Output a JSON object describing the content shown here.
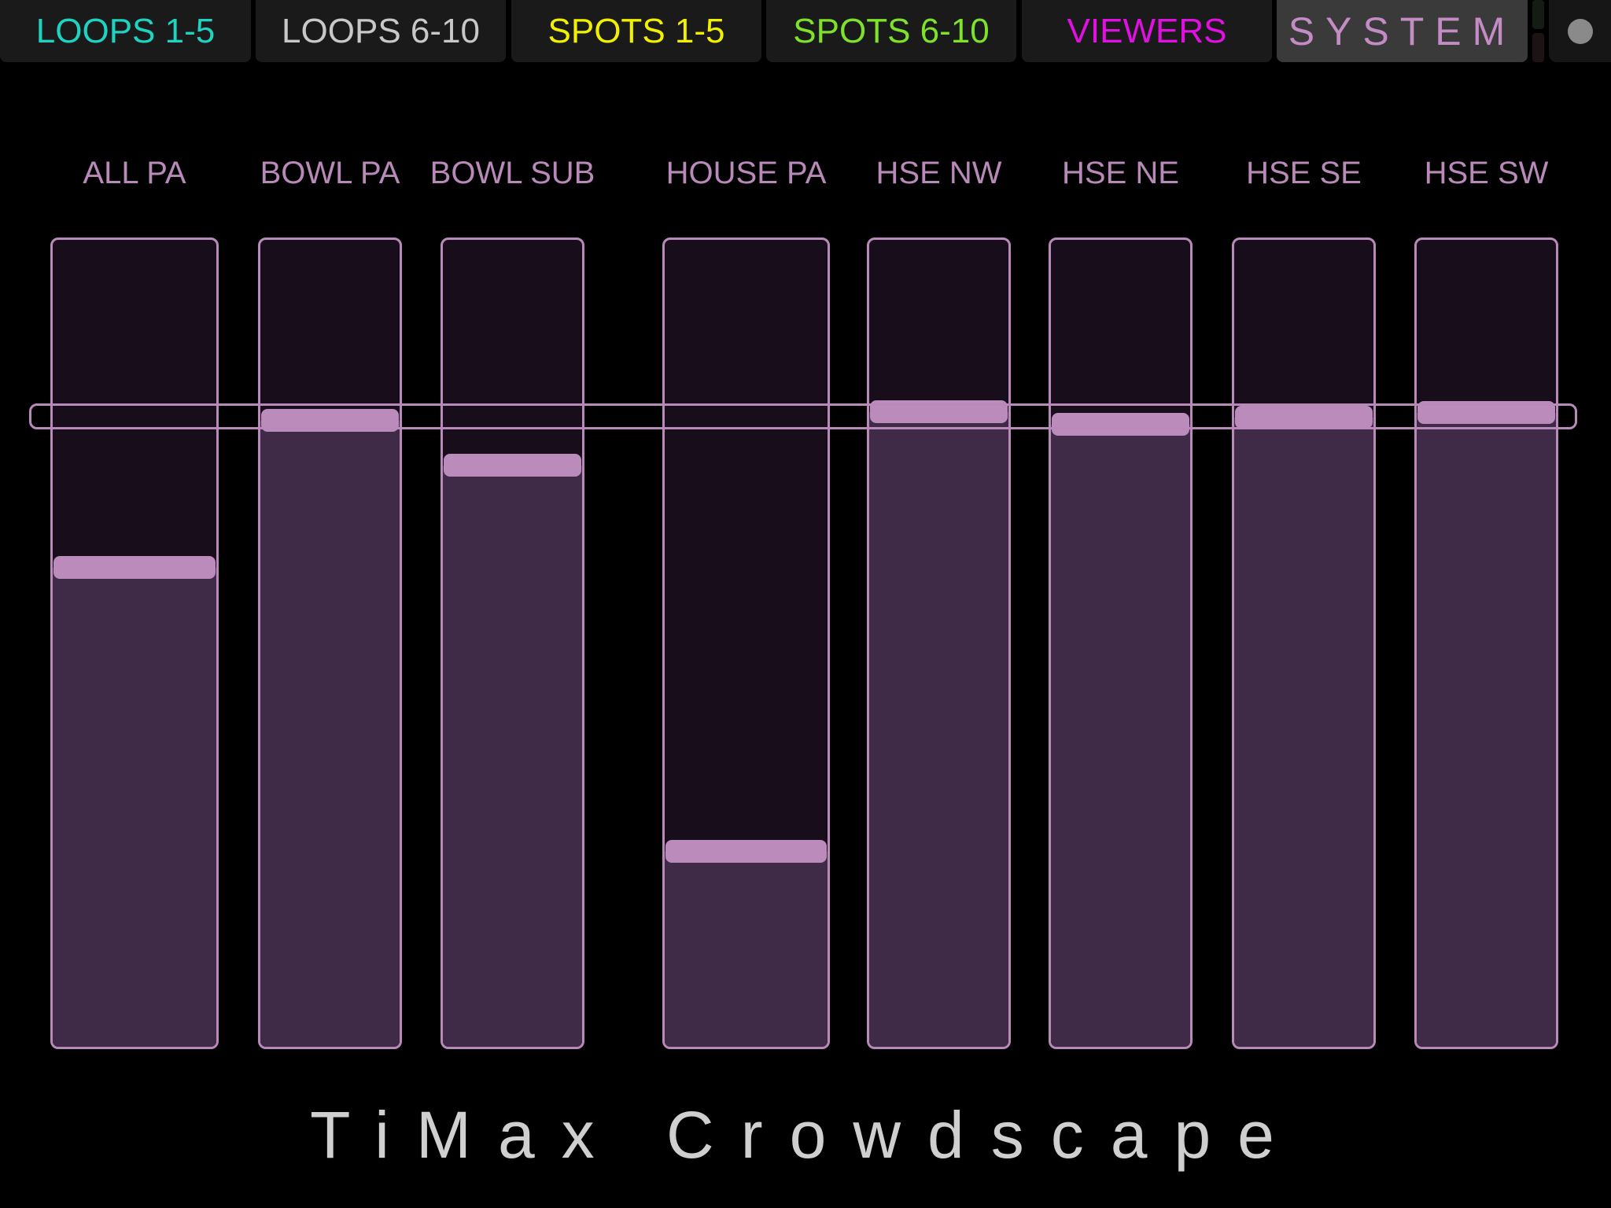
{
  "tabs": [
    {
      "label": "LOOPS 1-5",
      "color": "#1ed3c0"
    },
    {
      "label": "LOOPS 6-10",
      "color": "#c8c8c8"
    },
    {
      "label": "SPOTS 1-5",
      "color": "#f0f000"
    },
    {
      "label": "SPOTS 6-10",
      "color": "#7ee22a"
    },
    {
      "label": "VIEWERS",
      "color": "#e010e0"
    },
    {
      "label": "SYSTEM",
      "color": "#c48cc4"
    }
  ],
  "faders": [
    {
      "label": "ALL PA",
      "level": 0.594
    },
    {
      "label": "BOWL PA",
      "level": 0.776
    },
    {
      "label": "BOWL SUB",
      "level": 0.72
    },
    {
      "label": "HOUSE PA",
      "level": 0.242
    },
    {
      "label": "HSE NW",
      "level": 0.787
    },
    {
      "label": "HSE NE",
      "level": 0.771
    },
    {
      "label": "HSE SE",
      "level": 0.78
    },
    {
      "label": "HSE SW",
      "level": 0.786
    }
  ],
  "title": "TiMax Crowdscape",
  "colors": {
    "accent": "#b98ab9",
    "track": "#170d1b",
    "fill": "#3f2a47"
  }
}
